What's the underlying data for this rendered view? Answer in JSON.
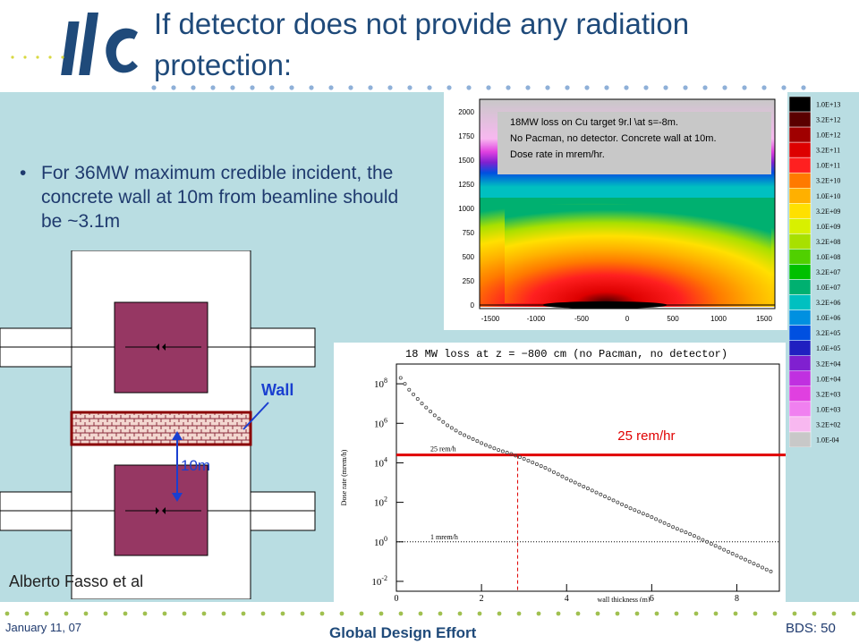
{
  "slide": {
    "title": "If detector does not provide any radiation protection:",
    "bullet": "For 36MW maximum credible incident, the concrete wall at 10m from beamline should be ~3.1m",
    "author": "Alberto Fasso et al",
    "diagram_labels": {
      "wall": "Wall",
      "distance": "10m"
    },
    "footer": {
      "date": "January 11, 07",
      "center": "Global Design Effort",
      "page": "BDS: 50"
    },
    "logo_text": "ilc"
  },
  "colors": {
    "title": "#1f4a7a",
    "panel": "#b9dde2",
    "magnet": "#963763",
    "wall_line": "#e00000",
    "arrow": "#1a3fd0"
  },
  "contour_plot": {
    "annotation": [
      "18MW loss on Cu target 9r.l \\at s=-8m.",
      "No Pacman, no detector. Concrete wall at 10m.",
      "Dose rate in mrem/hr."
    ],
    "y_ticks": [
      "2000",
      "1750",
      "1500",
      "1250",
      "1000",
      "750",
      "500",
      "250",
      "0"
    ],
    "x_ticks": [
      "-1500",
      "-1000",
      "-500",
      "0",
      "500",
      "1000",
      "1500"
    ],
    "legend": [
      {
        "label": "1.0E+13",
        "color": "#000000"
      },
      {
        "label": "3.2E+12",
        "color": "#5a0000"
      },
      {
        "label": "1.0E+12",
        "color": "#a00000"
      },
      {
        "label": "3.2E+11",
        "color": "#dd0000"
      },
      {
        "label": "1.0E+11",
        "color": "#ff2020"
      },
      {
        "label": "3.2E+10",
        "color": "#ff7a00"
      },
      {
        "label": "1.0E+10",
        "color": "#ffb000"
      },
      {
        "label": "3.2E+09",
        "color": "#ffe000"
      },
      {
        "label": "1.0E+09",
        "color": "#d8f000"
      },
      {
        "label": "3.2E+08",
        "color": "#a8e000"
      },
      {
        "label": "1.0E+08",
        "color": "#50d000"
      },
      {
        "label": "3.2E+07",
        "color": "#00c000"
      },
      {
        "label": "1.0E+07",
        "color": "#00b070"
      },
      {
        "label": "3.2E+06",
        "color": "#00c0c0"
      },
      {
        "label": "1.0E+06",
        "color": "#0090e0"
      },
      {
        "label": "3.2E+05",
        "color": "#0050e0"
      },
      {
        "label": "1.0E+05",
        "color": "#2020c0"
      },
      {
        "label": "3.2E+04",
        "color": "#8020d0"
      },
      {
        "label": "1.0E+04",
        "color": "#c030e0"
      },
      {
        "label": "3.2E+03",
        "color": "#e040e0"
      },
      {
        "label": "1.0E+03",
        "color": "#f080f0"
      },
      {
        "label": "3.2E+02",
        "color": "#f8b8f0"
      },
      {
        "label": "1.0E-04",
        "color": "#c8c8c8"
      }
    ]
  },
  "chart_data": {
    "type": "scatter",
    "title": "18 MW loss at z = −800 cm (no Pacman, no detector)",
    "xlabel": "wall thickness (m)",
    "ylabel": "Dose rate (mrem/h)",
    "x_ticks": [
      "0",
      "2",
      "4",
      "6",
      "8"
    ],
    "y_ticks": [
      "10^8",
      "10^6",
      "10^4",
      "10^2",
      "10^0",
      "10^-2"
    ],
    "y_scale": "log",
    "xlim": [
      0,
      9
    ],
    "ylim_exp": [
      -2.5,
      9
    ],
    "annotations": [
      "25 rem/h",
      "1 mrem/h",
      "25 rem/hr"
    ],
    "reference_lines": [
      {
        "name": "25 rem/h",
        "y_exp": 4.4
      },
      {
        "name": "1 mrem/h",
        "y_exp": 0
      }
    ],
    "crossing_x": 2.85,
    "log10_points": [
      [
        0.1,
        8.3
      ],
      [
        0.3,
        7.7
      ],
      [
        0.6,
        7.0
      ],
      [
        0.9,
        6.4
      ],
      [
        1.2,
        5.9
      ],
      [
        1.5,
        5.5
      ],
      [
        1.8,
        5.2
      ],
      [
        2.1,
        4.9
      ],
      [
        2.4,
        4.65
      ],
      [
        2.7,
        4.45
      ],
      [
        3.0,
        4.2
      ],
      [
        3.5,
        3.75
      ],
      [
        4.0,
        3.2
      ],
      [
        4.5,
        2.7
      ],
      [
        5.0,
        2.2
      ],
      [
        5.5,
        1.7
      ],
      [
        6.0,
        1.25
      ],
      [
        6.5,
        0.75
      ],
      [
        7.0,
        0.3
      ],
      [
        7.5,
        -0.2
      ],
      [
        8.0,
        -0.7
      ],
      [
        8.5,
        -1.2
      ],
      [
        8.9,
        -1.6
      ]
    ]
  }
}
